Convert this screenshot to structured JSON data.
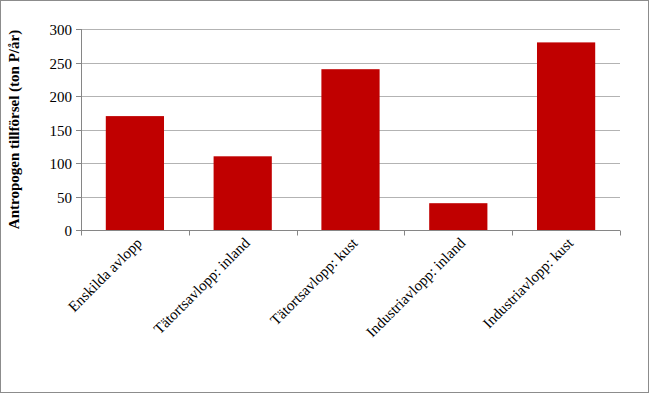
{
  "chart_data": {
    "type": "bar",
    "y_label": "Antropogen tillförsel (ton P/år)",
    "categories": [
      "Enskilda avlopp",
      "Tätortsavlopp: inland",
      "Tätortsavlopp: kust",
      "Industriavlopp: inland",
      "Industriavlopp: kust"
    ],
    "values": [
      170,
      110,
      240,
      40,
      280
    ],
    "color": "#c00000",
    "ylim": [
      0,
      300
    ],
    "yticks": [
      0,
      50,
      100,
      150,
      200,
      250,
      300
    ],
    "grid": true
  }
}
